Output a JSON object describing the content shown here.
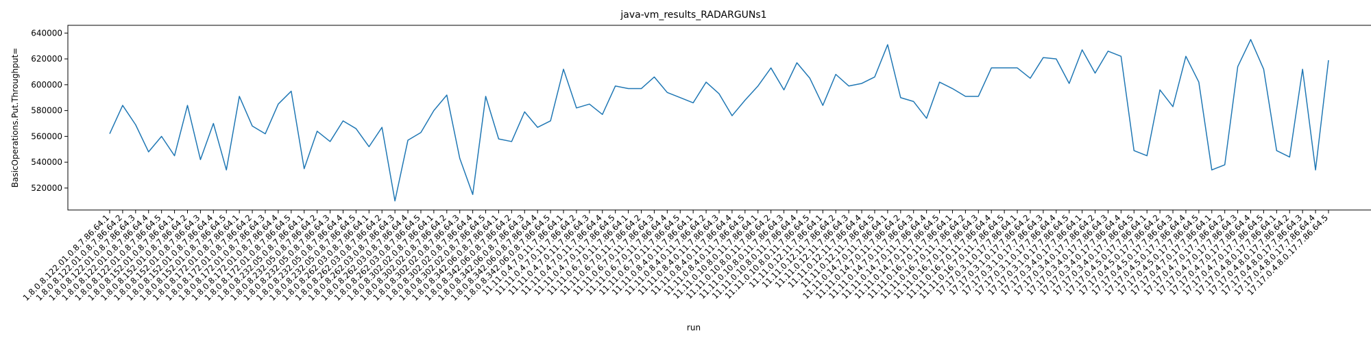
{
  "chart_data": {
    "type": "line",
    "title": "java-vm_results_RADARGUNs1",
    "xlabel": "run",
    "ylabel": "BasicOperations.Put.Throughput=",
    "ylim": [
      503000,
      646000
    ],
    "yticks": [
      520000,
      540000,
      560000,
      580000,
      600000,
      620000,
      640000
    ],
    "grid": false,
    "legend": "none",
    "series": [
      {
        "color": "#1f77b4",
        "values": [
          562000,
          584000,
          569000,
          548000,
          560000,
          545000,
          584000,
          542000,
          570000,
          534000,
          591000,
          568000,
          562000,
          585000,
          595000,
          535000,
          564000,
          556000,
          572000,
          566000,
          552000,
          567000,
          510000,
          557000,
          563000,
          580000,
          592000,
          543000,
          515000,
          591000,
          558000,
          556000,
          579000,
          567000,
          572000,
          612000,
          582000,
          585000,
          577000,
          599000,
          597000,
          597000,
          606000,
          594000,
          590000,
          586000,
          602000,
          593000,
          576000,
          588000,
          599000,
          613000,
          596000,
          617000,
          605000,
          584000,
          608000,
          599000,
          601000,
          606000,
          631000,
          590000,
          587000,
          574000,
          602000,
          597000,
          591000,
          591000,
          613000,
          613000,
          613000,
          605000,
          621000,
          620000,
          601000,
          627000,
          609000,
          626000,
          622000,
          549000,
          545000,
          596000,
          583000,
          622000,
          602000,
          534000,
          538000,
          614000,
          635000,
          612000,
          549000,
          544000,
          612000,
          534000,
          619000
        ]
      }
    ],
    "categories": [
      "1.8.0.8.122.01.0.8.7.86.64.1",
      "1.8.0.8.122.01.0.8.7.86.64.2",
      "1.8.0.8.122.01.0.8.7.86.64.3",
      "1.8.0.8.122.01.0.8.7.86.64.4",
      "1.8.0.8.122.01.0.8.7.86.64.5",
      "1.8.0.8.152.01.0.8.7.86.64.1",
      "1.8.0.8.152.01.0.8.7.86.64.2",
      "1.8.0.8.152.01.0.8.7.86.64.3",
      "1.8.0.8.152.01.0.8.7.86.64.4",
      "1.8.0.8.152.01.0.8.7.86.64.5",
      "1.8.0.8.172.01.0.8.7.86.64.1",
      "1.8.0.8.172.01.0.8.7.86.64.2",
      "1.8.0.8.172.01.0.8.7.86.64.3",
      "1.8.0.8.172.01.0.8.7.86.64.4",
      "1.8.0.8.172.01.0.8.7.86.64.5",
      "1.8.0.8.232.05.0.8.7.86.64.1",
      "1.8.0.8.232.05.0.8.7.86.64.2",
      "1.8.0.8.232.05.0.8.7.86.64.3",
      "1.8.0.8.232.05.0.8.7.86.64.4",
      "1.8.0.8.232.05.0.8.7.86.64.5",
      "1.8.0.8.262.03.0.8.7.86.64.1",
      "1.8.0.8.262.03.0.8.7.86.64.2",
      "1.8.0.8.262.03.0.8.7.86.64.3",
      "1.8.0.8.262.03.0.8.7.86.64.4",
      "1.8.0.8.262.03.0.8.7.86.64.5",
      "1.8.0.8.302.02.0.8.7.86.64.1",
      "1.8.0.8.302.02.0.8.7.86.64.2",
      "1.8.0.8.302.02.0.8.7.86.64.3",
      "1.8.0.8.302.02.0.8.7.86.64.4",
      "1.8.0.8.302.02.0.8.7.86.64.5",
      "1.8.0.8.342.06.0.8.7.86.64.1",
      "1.8.0.8.342.06.0.8.7.86.64.2",
      "1.8.0.8.342.06.0.8.7.86.64.3",
      "1.8.0.8.342.06.0.8.7.86.64.4",
      "1.8.0.8.342.06.0.8.7.86.64.5",
      "11.11.0.4.7.0.11.7.86.64.1",
      "11.11.0.4.7.0.11.7.86.64.2",
      "11.11.0.4.7.0.11.7.86.64.3",
      "11.11.0.4.7.0.11.7.86.64.4",
      "11.11.0.4.7.0.11.7.86.64.5",
      "11.11.0.6.7.0.11.7.86.64.1",
      "11.11.0.6.7.0.11.7.86.64.2",
      "11.11.0.6.7.0.11.7.86.64.3",
      "11.11.0.6.7.0.11.7.86.64.4",
      "11.11.0.6.7.0.11.7.86.64.5",
      "11.11.0.8.4.0.11.7.86.64.1",
      "11.11.0.8.4.0.11.7.86.64.2",
      "11.11.0.8.4.0.11.7.86.64.3",
      "11.11.0.8.4.0.11.7.86.64.4",
      "11.11.0.8.4.0.11.7.86.64.5",
      "11.11.0.10.8.0.11.7.86.64.1",
      "11.11.0.10.8.0.11.7.86.64.2",
      "11.11.0.10.8.0.11.7.86.64.3",
      "11.11.0.10.8.0.11.7.86.64.4",
      "11.11.0.10.8.0.11.7.86.64.5",
      "11.11.0.12.11.7.86.64.1",
      "11.11.0.12.11.7.86.64.2",
      "11.11.0.12.11.7.86.64.3",
      "11.11.0.12.11.7.86.64.4",
      "11.11.0.12.11.7.86.64.5",
      "11.11.0.14.7.0.11.7.86.64.1",
      "11.11.0.14.7.0.11.7.86.64.2",
      "11.11.0.14.7.0.11.7.86.64.3",
      "11.11.0.14.7.0.11.7.86.64.4",
      "11.11.0.14.7.0.11.7.86.64.5",
      "11.11.0.16.7.0.11.7.86.64.1",
      "11.11.0.16.7.0.11.7.86.64.2",
      "11.11.0.16.7.0.11.7.86.64.3",
      "11.11.0.16.7.0.11.7.86.64.4",
      "11.11.0.16.7.0.11.7.86.64.5",
      "17.17.0.3.1.0.17.7.86.64.1",
      "17.17.0.3.1.0.17.7.86.64.2",
      "17.17.0.3.1.0.17.7.86.64.3",
      "17.17.0.3.1.0.17.7.86.64.4",
      "17.17.0.3.1.0.17.7.86.64.5",
      "17.17.0.3.4.0.17.7.86.64.1",
      "17.17.0.3.4.0.17.7.86.64.2",
      "17.17.0.3.4.0.17.7.86.64.3",
      "17.17.0.3.4.0.17.7.86.64.4",
      "17.17.0.3.4.0.17.7.86.64.5",
      "17.17.0.4.5.0.17.7.86.64.1",
      "17.17.0.4.5.0.17.7.86.64.2",
      "17.17.0.4.5.0.17.7.86.64.3",
      "17.17.0.4.5.0.17.7.86.64.4",
      "17.17.0.4.5.0.17.7.86.64.5",
      "17.17.0.4.7.0.17.7.86.64.1",
      "17.17.0.4.7.0.17.7.86.64.2",
      "17.17.0.4.7.0.17.7.86.64.3",
      "17.17.0.4.7.0.17.7.86.64.4",
      "17.17.0.4.7.0.17.7.86.64.5",
      "17.17.0.4.8.0.17.7.86.64.1",
      "17.17.0.4.8.0.17.7.86.64.2",
      "17.17.0.4.8.0.17.7.86.64.3",
      "17.17.0.4.8.0.17.7.86.64.4",
      "17.17.0.4.8.0.17.7.86.64.5"
    ]
  }
}
